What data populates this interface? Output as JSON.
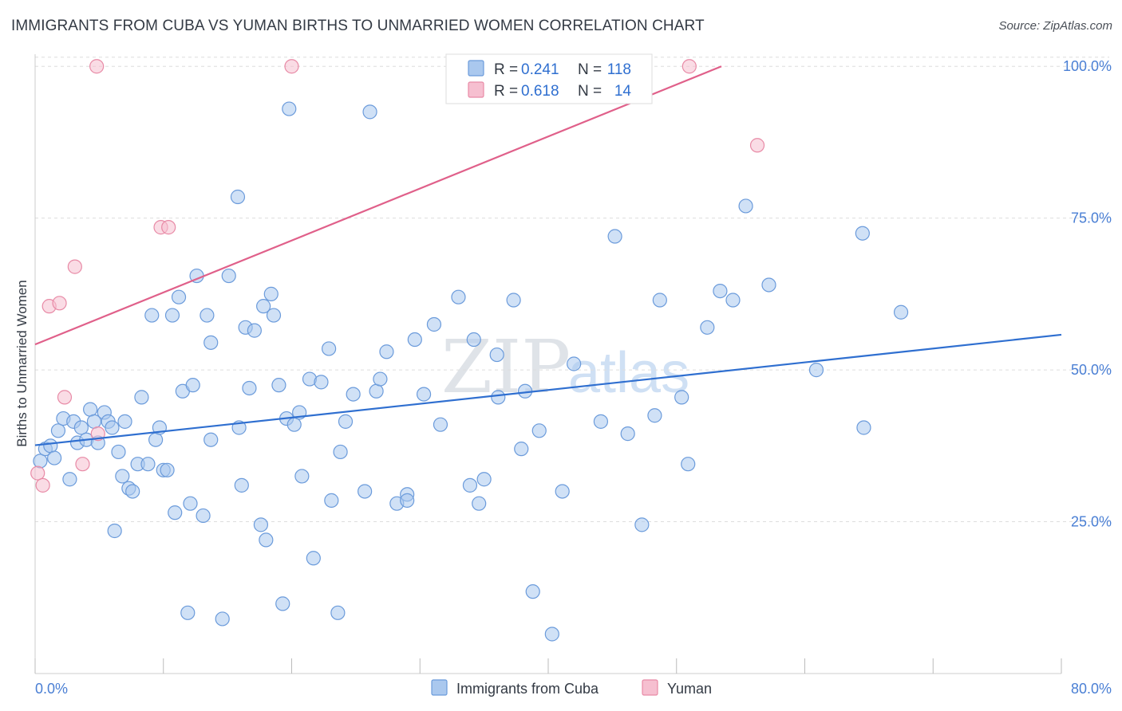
{
  "header": {
    "title": "IMMIGRANTS FROM CUBA VS YUMAN BIRTHS TO UNMARRIED WOMEN CORRELATION CHART",
    "source": "Source: ZipAtlas.com"
  },
  "watermark": {
    "part1": "ZIP",
    "part2": "atlas"
  },
  "legend": {
    "r_label": "R =",
    "n_label": "N =",
    "entries": [
      {
        "series": "Immigrants from Cuba",
        "r": "0.241",
        "n": "118"
      },
      {
        "series": "Yuman",
        "r": "0.618",
        "n": "14"
      }
    ]
  },
  "bottom_legend": {
    "items": [
      "Immigrants from Cuba",
      "Yuman"
    ]
  },
  "colors": {
    "cuba_fill": "#aac8ee",
    "cuba_stroke": "#6b9bdb",
    "cuba_line": "#2f6fd0",
    "yuman_fill": "#f6bfd0",
    "yuman_stroke": "#e88aa6",
    "yuman_line": "#e0608a",
    "grid": "#dddddd",
    "tick_text": "#4a7fd4"
  },
  "chart_data": {
    "type": "scatter",
    "title": "IMMIGRANTS FROM CUBA VS YUMAN BIRTHS TO UNMARRIED WOMEN CORRELATION CHART",
    "xlabel": "Immigrants from Cuba",
    "ylabel": "Births to Unmarried Women",
    "xlim": [
      0,
      80
    ],
    "ylim": [
      0,
      102
    ],
    "x_tick_labels": [
      "0.0%",
      "80.0%"
    ],
    "y_ticks": [
      25,
      50,
      75,
      100
    ],
    "y_tick_labels": [
      "25.0%",
      "50.0%",
      "75.0%",
      "100.0%"
    ],
    "grid": true,
    "legend_position": "top-center",
    "series": [
      {
        "name": "Immigrants from Cuba",
        "r": 0.241,
        "n": 118,
        "trend": {
          "x": [
            0,
            80
          ],
          "y": [
            37.6,
            55.8
          ]
        },
        "points": [
          [
            0.4,
            35
          ],
          [
            0.8,
            37
          ],
          [
            1.2,
            37.5
          ],
          [
            1.5,
            35.5
          ],
          [
            1.8,
            40
          ],
          [
            2.2,
            42
          ],
          [
            2.7,
            32
          ],
          [
            3.0,
            41.5
          ],
          [
            3.3,
            38
          ],
          [
            3.6,
            40.5
          ],
          [
            4.0,
            38.5
          ],
          [
            4.3,
            43.5
          ],
          [
            4.6,
            41.5
          ],
          [
            4.9,
            38
          ],
          [
            5.4,
            43
          ],
          [
            5.7,
            41.5
          ],
          [
            6.0,
            40.5
          ],
          [
            6.2,
            23.5
          ],
          [
            6.5,
            36.5
          ],
          [
            6.8,
            32.5
          ],
          [
            7.0,
            41.5
          ],
          [
            7.3,
            30.5
          ],
          [
            7.6,
            30
          ],
          [
            8.0,
            34.5
          ],
          [
            8.3,
            45.5
          ],
          [
            8.8,
            34.5
          ],
          [
            9.1,
            59
          ],
          [
            9.4,
            38.5
          ],
          [
            9.7,
            40.5
          ],
          [
            10.0,
            33.5
          ],
          [
            10.3,
            33.5
          ],
          [
            10.7,
            59
          ],
          [
            10.9,
            26.5
          ],
          [
            11.2,
            62
          ],
          [
            11.5,
            46.5
          ],
          [
            11.9,
            10
          ],
          [
            12.1,
            28
          ],
          [
            12.3,
            47.5
          ],
          [
            12.6,
            65.5
          ],
          [
            13.1,
            26
          ],
          [
            13.4,
            59
          ],
          [
            13.7,
            38.5
          ],
          [
            13.7,
            54.5
          ],
          [
            14.6,
            9
          ],
          [
            15.1,
            65.5
          ],
          [
            15.8,
            78.5
          ],
          [
            15.9,
            40.5
          ],
          [
            16.1,
            31
          ],
          [
            16.4,
            57
          ],
          [
            16.7,
            47
          ],
          [
            17.1,
            56.5
          ],
          [
            17.6,
            24.5
          ],
          [
            17.8,
            60.5
          ],
          [
            18.0,
            22
          ],
          [
            18.4,
            62.5
          ],
          [
            18.6,
            59
          ],
          [
            19.0,
            47.5
          ],
          [
            19.3,
            11.5
          ],
          [
            19.6,
            42
          ],
          [
            19.8,
            93
          ],
          [
            20.2,
            41
          ],
          [
            20.6,
            43
          ],
          [
            20.8,
            32.5
          ],
          [
            21.4,
            48.5
          ],
          [
            21.7,
            19
          ],
          [
            22.3,
            48
          ],
          [
            22.9,
            53.5
          ],
          [
            23.1,
            28.5
          ],
          [
            23.6,
            10
          ],
          [
            23.8,
            36.5
          ],
          [
            24.2,
            41.5
          ],
          [
            24.8,
            46
          ],
          [
            25.7,
            30
          ],
          [
            26.1,
            92.5
          ],
          [
            26.6,
            46.5
          ],
          [
            26.9,
            48.5
          ],
          [
            27.4,
            53
          ],
          [
            28.2,
            28
          ],
          [
            29.0,
            29.5
          ],
          [
            29.0,
            28.5
          ],
          [
            29.6,
            55
          ],
          [
            30.3,
            46
          ],
          [
            31.1,
            57.5
          ],
          [
            31.6,
            41
          ],
          [
            33.0,
            62
          ],
          [
            33.9,
            31
          ],
          [
            34.2,
            55
          ],
          [
            34.6,
            28
          ],
          [
            35.0,
            32
          ],
          [
            36.0,
            52.5
          ],
          [
            36.1,
            45.5
          ],
          [
            37.3,
            61.5
          ],
          [
            37.9,
            37
          ],
          [
            38.2,
            46.5
          ],
          [
            38.8,
            13.5
          ],
          [
            39.3,
            40
          ],
          [
            40.3,
            6.5
          ],
          [
            41.1,
            30
          ],
          [
            42.0,
            51
          ],
          [
            44.1,
            41.5
          ],
          [
            45.2,
            72
          ],
          [
            46.2,
            39.5
          ],
          [
            47.3,
            24.5
          ],
          [
            48.3,
            42.5
          ],
          [
            48.7,
            61.5
          ],
          [
            50.4,
            45.5
          ],
          [
            50.9,
            34.5
          ],
          [
            52.4,
            57
          ],
          [
            53.4,
            63
          ],
          [
            54.4,
            61.5
          ],
          [
            55.4,
            77
          ],
          [
            57.2,
            64
          ],
          [
            60.9,
            50
          ],
          [
            64.5,
            72.5
          ],
          [
            64.6,
            40.5
          ],
          [
            67.5,
            59.5
          ]
        ]
      },
      {
        "name": "Yuman",
        "r": 0.618,
        "n": 14,
        "trend": {
          "x": [
            0,
            53.5
          ],
          "y": [
            54.2,
            100
          ]
        },
        "points": [
          [
            0.2,
            33
          ],
          [
            0.6,
            31
          ],
          [
            1.1,
            60.5
          ],
          [
            1.9,
            61
          ],
          [
            2.3,
            45.5
          ],
          [
            3.1,
            67
          ],
          [
            3.7,
            34.5
          ],
          [
            4.8,
            100
          ],
          [
            4.9,
            39.5
          ],
          [
            9.8,
            73.5
          ],
          [
            10.4,
            73.5
          ],
          [
            20.0,
            100
          ],
          [
            51.0,
            100
          ],
          [
            56.3,
            87
          ]
        ]
      }
    ]
  }
}
